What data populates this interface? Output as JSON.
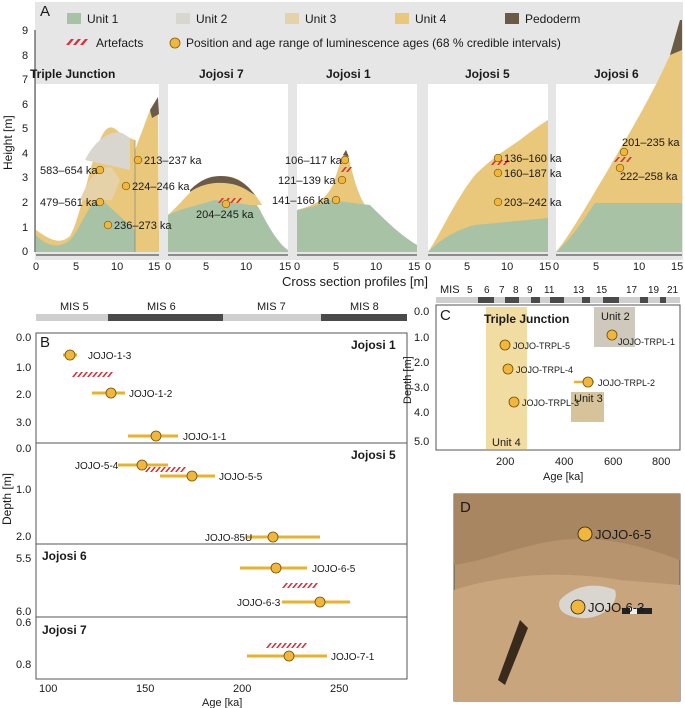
{
  "panels": {
    "A": "A",
    "B": "B",
    "C": "C",
    "D": "D"
  },
  "colors": {
    "unit1": "#a8c2a6",
    "unit2": "#d9d6cf",
    "unit3": "#e6d2a8",
    "unit4": "#e9c77b",
    "pedoderm": "#6b5a45",
    "artefact": "#d8303a",
    "marker": "#f2b63a",
    "bar": "#e9b22a"
  },
  "legend": {
    "unit1": "Unit 1",
    "unit2": "Unit 2",
    "unit3": "Unit 3",
    "unit4": "Unit 4",
    "pedoderm": "Pedoderm",
    "artefacts": "Artefacts",
    "ages": "Position and age range of luminescence ages (68 % credible intervals)"
  },
  "panel_a": {
    "ylabel": "Height [m]",
    "xlabel": "Cross section profiles [m]",
    "y_ticks": [
      "0",
      "1",
      "2",
      "3",
      "4",
      "5",
      "6",
      "7",
      "8",
      "9"
    ],
    "x_ticks": [
      "0",
      "5",
      "10",
      "15"
    ],
    "sites": [
      "Triple Junction",
      "Jojosi 7",
      "Jojosi 1",
      "Jojosi 5",
      "Jojosi 6"
    ],
    "age_labels": {
      "tj": [
        "583–654 ka",
        "479–561 ka",
        "213–237 ka",
        "224–246 ka",
        "236–273 ka"
      ],
      "j7": [
        "204–245 ka"
      ],
      "j1": [
        "106–117 ka",
        "121–139 ka",
        "141–166 ka"
      ],
      "j5": [
        "136–160 ka",
        "160–187 ka",
        "203–242 ka"
      ],
      "j6": [
        "201–235 ka",
        "222–258 ka"
      ]
    }
  },
  "panel_b": {
    "mis": [
      "MIS 5",
      "MIS 6",
      "MIS 7",
      "MIS 8"
    ],
    "xlabel": "Age [ka]",
    "ylabel": "Depth [m]",
    "x_ticks": [
      "100",
      "150",
      "200",
      "250"
    ],
    "subpanels": [
      {
        "site": "Jojosi 1",
        "y_ticks": [
          "0.0",
          "1.0",
          "2.0",
          "3.0"
        ],
        "samples": [
          {
            "label": "JOJO-1-3",
            "age": 111,
            "lo": 106,
            "hi": 117,
            "depth": 0.7
          },
          {
            "label": "JOJO-1-2",
            "age": 133,
            "lo": 121,
            "hi": 139,
            "depth": 2.0
          },
          {
            "label": "JOJO-1-1",
            "age": 155,
            "lo": 141,
            "hi": 166,
            "depth": 3.6
          }
        ],
        "artefact": {
          "age": 120,
          "depth": 1.35
        }
      },
      {
        "site": "Jojosi 5",
        "y_ticks": [
          "0.0",
          "1.0",
          "2.0"
        ],
        "samples": [
          {
            "label": "JOJO-5-4",
            "age": 148,
            "lo": 136,
            "hi": 160,
            "depth": 0.4
          },
          {
            "label": "JOJO-5-5",
            "age": 174,
            "lo": 160,
            "hi": 187,
            "depth": 0.62
          },
          {
            "label": "JOJO-85U",
            "age": 218,
            "lo": 203,
            "hi": 242,
            "depth": 2.0
          }
        ],
        "artefact": {
          "age": 168,
          "depth": 0.5
        }
      },
      {
        "site": "Jojosi 6",
        "y_ticks": [
          "5.5",
          "6.0"
        ],
        "samples": [
          {
            "label": "JOJO-6-5",
            "age": 218,
            "lo": 201,
            "hi": 235,
            "depth": 5.62
          },
          {
            "label": "JOJO-6-3",
            "age": 242,
            "lo": 222,
            "hi": 258,
            "depth": 5.96
          }
        ],
        "artefact": {
          "age": 231,
          "depth": 5.8
        }
      },
      {
        "site": "Jojosi 7",
        "y_ticks": [
          "0.6",
          "0.8"
        ],
        "samples": [
          {
            "label": "JOJO-7-1",
            "age": 226,
            "lo": 204,
            "hi": 245,
            "depth": 0.87
          }
        ],
        "artefact": {
          "age": 224,
          "depth": 0.78
        }
      }
    ]
  },
  "panel_c": {
    "site": "Triple Junction",
    "mis_label": "MIS",
    "mis_numbers": [
      "5",
      "6",
      "7",
      "8",
      "9",
      "11",
      "13",
      "15",
      "17",
      "19",
      "21"
    ],
    "xlabel": "Age [ka]",
    "ylabel": "Depth [m]",
    "x_ticks": [
      "200",
      "400",
      "600",
      "800"
    ],
    "y_ticks": [
      "0.0",
      "1.0",
      "2.0",
      "3.0",
      "4.0",
      "5.0"
    ],
    "units": [
      "Unit 2",
      "Unit 3",
      "Unit 4"
    ],
    "samples": [
      {
        "label": "JOJO-TRPL-1",
        "age": 618,
        "depth": 1.15
      },
      {
        "label": "JOJO-TRPL-5",
        "age": 225,
        "depth": 1.75
      },
      {
        "label": "JOJO-TRPL-4",
        "age": 235,
        "depth": 2.9
      },
      {
        "label": "JOJO-TRPL-2",
        "age": 520,
        "depth": 3.5
      },
      {
        "label": "JOJO-TRPL-3",
        "age": 255,
        "depth": 4.35
      }
    ]
  },
  "panel_d": {
    "labels": [
      "JOJO-6-5",
      "JOJO-6-3"
    ]
  }
}
